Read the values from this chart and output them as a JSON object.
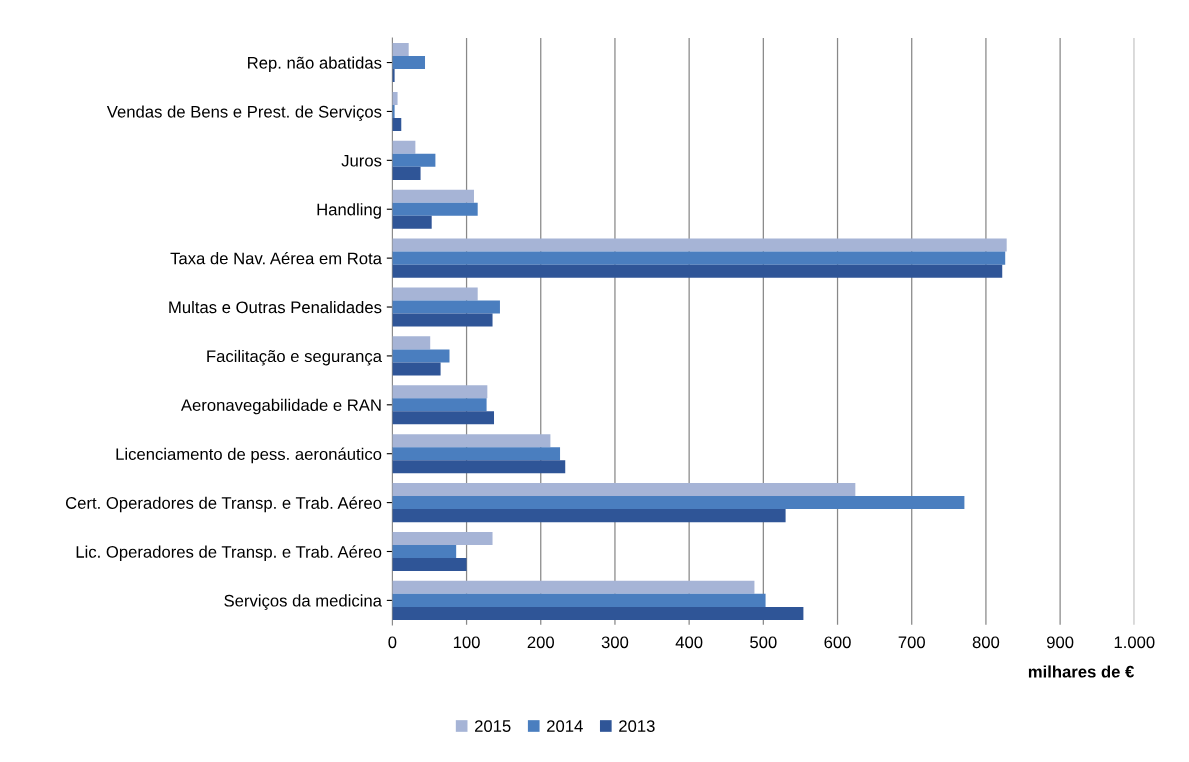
{
  "chart_data": {
    "type": "bar",
    "orientation": "horizontal",
    "xlabel": "milhares de €",
    "categories": [
      "Rep. não abatidas",
      "Vendas de Bens e Prest. de Serviços",
      "Juros",
      "Handling",
      "Taxa de Nav. Aérea em Rota",
      "Multas e Outras Penalidades",
      "Facilitação e segurança",
      "Aeronavegabilidade e RAN",
      "Licenciamento de pess. aeronáutico",
      "Cert. Operadores de Transp. e Trab. Aéreo",
      "Lic. Operadores de Transp. e Trab. Aéreo",
      "Serviços da medicina"
    ],
    "series": [
      {
        "name": "2015",
        "color": "#a6b4d6",
        "values": [
          22,
          7,
          31,
          110,
          828,
          115,
          51,
          128,
          213,
          624,
          135,
          488
        ]
      },
      {
        "name": "2014",
        "color": "#4a7ebf",
        "values": [
          44,
          3,
          58,
          115,
          826,
          145,
          77,
          127,
          226,
          771,
          86,
          503
        ]
      },
      {
        "name": "2013",
        "color": "#2f5597",
        "values": [
          3,
          12,
          38,
          53,
          822,
          135,
          65,
          137,
          233,
          530,
          100,
          554
        ]
      }
    ],
    "xlim": [
      0,
      1000
    ],
    "xticks": [
      0,
      100,
      200,
      300,
      400,
      500,
      600,
      700,
      800,
      900,
      {
        "value": 1000,
        "label": "1.000"
      }
    ],
    "grid": "x",
    "legend": "bottom"
  }
}
